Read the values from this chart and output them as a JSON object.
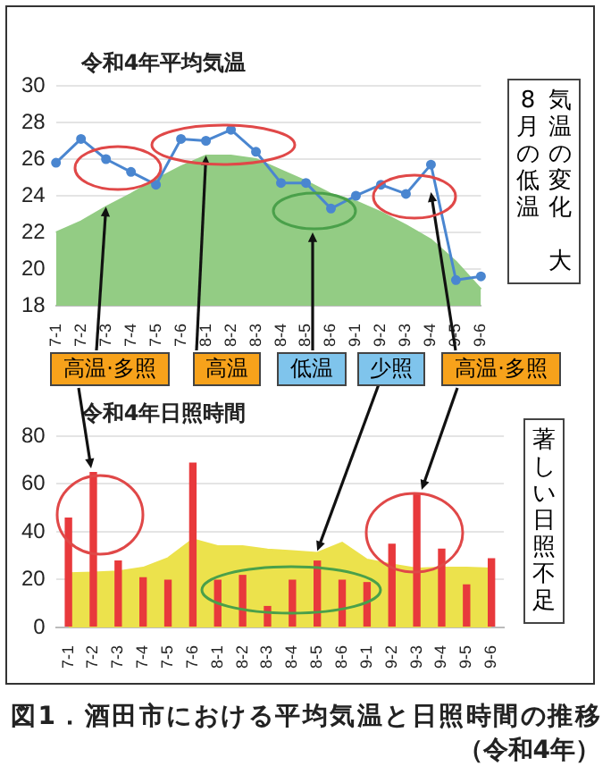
{
  "chart_data": [
    {
      "type": "line",
      "title": "令和4年平均気温",
      "categories": [
        "7-1",
        "7-2",
        "7-3",
        "7-4",
        "7-5",
        "7-6",
        "8-1",
        "8-2",
        "8-3",
        "8-4",
        "8-5",
        "8-6",
        "9-1",
        "9-2",
        "9-3",
        "9-4",
        "9-5",
        "9-6"
      ],
      "series": [
        {
          "type": "area",
          "color": "#93cc84",
          "values": [
            22.0,
            22.6,
            23.4,
            24.1,
            24.9,
            25.6,
            26.2,
            26.2,
            26.0,
            25.4,
            24.8,
            24.1,
            23.7,
            23.1,
            22.4,
            21.6,
            20.4,
            18.9
          ]
        },
        {
          "color": "#4a86d0",
          "marker": "circle",
          "values": [
            25.8,
            27.1,
            26.0,
            25.3,
            24.6,
            27.1,
            27.0,
            27.6,
            26.4,
            24.7,
            24.7,
            23.3,
            24.0,
            24.6,
            24.1,
            25.7,
            19.4,
            19.6
          ]
        }
      ],
      "ylim": [
        18,
        30
      ],
      "yticks": [
        18,
        20,
        22,
        24,
        26,
        28,
        30
      ],
      "grid": "y",
      "annotations": [
        {
          "text": "高温·多照",
          "x": "7-3",
          "y": 23.4
        },
        {
          "text": "高温",
          "x": "8-1",
          "y": 26.2
        },
        "低温",
        {
          "text": "高温·多照",
          "x": "9-4",
          "y": 24.2
        },
        "気温の変化",
        "大",
        "8月の低温"
      ]
    },
    {
      "type": "bar",
      "title": "令和4年日照時間",
      "categories": [
        "7-1",
        "7-2",
        "7-3",
        "7-4",
        "7-5",
        "7-6",
        "8-1",
        "8-2",
        "8-3",
        "8-4",
        "8-5",
        "8-6",
        "9-1",
        "9-2",
        "9-3",
        "9-4",
        "9-5",
        "9-6"
      ],
      "series": [
        {
          "type": "area",
          "color": "#ece24c",
          "values": [
            22.7,
            23,
            23.5,
            25,
            29,
            36.9,
            34,
            34,
            32.6,
            32,
            31.2,
            35.5,
            28.4,
            26.4,
            24.7,
            25,
            25,
            24.7
          ]
        },
        {
          "color": "#e8393c",
          "values": [
            46,
            65,
            28,
            21,
            20,
            69,
            20,
            22,
            9,
            20,
            28,
            20,
            19,
            35,
            56,
            33,
            18,
            29
          ]
        }
      ],
      "ylim": [
        0,
        80
      ],
      "yticks": [
        0,
        20,
        40,
        60,
        80
      ],
      "grid": "y",
      "annotations": [
        {
          "text": "少照",
          "x": "8-5",
          "y": 32
        },
        "著しい日照不足",
        "図1．酒田市における平均気温と日照時間の推移（令和4年）"
      ]
    }
  ]
}
